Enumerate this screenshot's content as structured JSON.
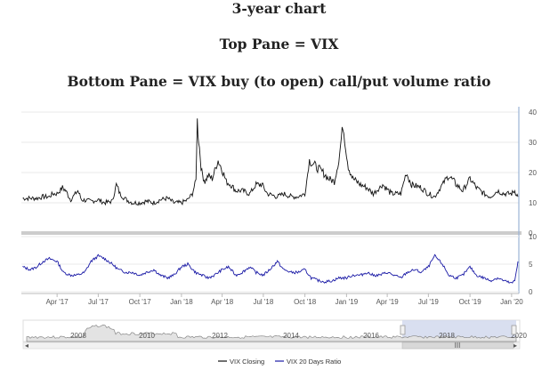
{
  "header": {
    "line1": "3-year chart",
    "line2": "Top Pane = VIX",
    "line3": "Bottom Pane = VIX buy (to open) call/put volume ratio"
  },
  "colors": {
    "vix": "#111111",
    "ratio": "#1a1aa6",
    "navigator_fill": "#cfd7ec",
    "navigator_line": "#888888"
  },
  "chart_data": {
    "type": "line",
    "x_tick_labels": [
      "Apr '17",
      "Jul '17",
      "Oct '17",
      "Jan '18",
      "Apr '18",
      "Jul '18",
      "Oct '18",
      "Jan '19",
      "Apr '19",
      "Jul '19",
      "Oct '19",
      "Jan '20"
    ],
    "top_pane": {
      "ylim": [
        0,
        40
      ],
      "y_tick_labels": [
        "10",
        "20",
        "30",
        "40"
      ]
    },
    "bottom_pane": {
      "ylim": [
        0,
        10
      ],
      "y_tick_labels": [
        "0",
        "5",
        "10"
      ]
    },
    "navigator_labels": [
      "2008",
      "2010",
      "2012",
      "2014",
      "2016",
      "2018",
      "2020"
    ],
    "series": [
      {
        "name": "VIX Closing",
        "x": [
          "2017-01-15",
          "2017-02-15",
          "2017-03-01",
          "2017-03-15",
          "2017-03-22",
          "2017-04-01",
          "2017-04-13",
          "2017-04-20",
          "2017-05-01",
          "2017-05-17",
          "2017-05-25",
          "2017-06-15",
          "2017-07-01",
          "2017-07-15",
          "2017-08-01",
          "2017-08-10",
          "2017-08-18",
          "2017-09-01",
          "2017-09-15",
          "2017-10-01",
          "2017-10-15",
          "2017-11-01",
          "2017-11-15",
          "2017-12-01",
          "2017-12-15",
          "2018-01-01",
          "2018-01-15",
          "2018-01-25",
          "2018-02-02",
          "2018-02-05",
          "2018-02-08",
          "2018-02-15",
          "2018-02-22",
          "2018-03-01",
          "2018-03-10",
          "2018-03-23",
          "2018-04-01",
          "2018-04-10",
          "2018-04-20",
          "2018-05-01",
          "2018-05-15",
          "2018-06-01",
          "2018-06-15",
          "2018-06-28",
          "2018-07-10",
          "2018-08-01",
          "2018-08-15",
          "2018-09-01",
          "2018-09-15",
          "2018-10-01",
          "2018-10-11",
          "2018-10-25",
          "2018-11-10",
          "2018-11-22",
          "2018-12-05",
          "2018-12-15",
          "2018-12-24",
          "2019-01-05",
          "2019-01-15",
          "2019-02-01",
          "2019-02-15",
          "2019-03-01",
          "2019-03-22",
          "2019-04-10",
          "2019-05-01",
          "2019-05-13",
          "2019-05-25",
          "2019-06-15",
          "2019-07-01",
          "2019-07-15",
          "2019-08-05",
          "2019-08-15",
          "2019-09-01",
          "2019-09-15",
          "2019-10-01",
          "2019-10-15",
          "2019-11-01",
          "2019-11-15",
          "2019-12-01",
          "2019-12-15",
          "2020-01-01",
          "2020-01-08",
          "2020-01-15"
        ],
        "values": [
          11.5,
          11.5,
          12,
          12,
          13,
          13,
          15,
          14,
          11,
          14,
          11,
          10.5,
          11,
          10,
          10.5,
          16,
          13,
          11,
          10,
          10,
          10.5,
          10,
          11,
          11.5,
          10,
          10,
          11,
          13,
          17.3,
          37,
          31,
          20,
          17,
          19,
          18,
          24,
          21,
          17,
          16,
          14,
          14,
          13,
          16,
          16,
          13,
          12,
          13,
          12,
          12,
          13,
          24,
          22,
          20,
          18,
          17,
          24,
          36,
          22,
          18,
          16,
          15,
          13,
          16,
          13,
          13,
          20,
          16,
          15,
          13,
          12,
          17,
          19,
          16,
          14,
          18,
          15,
          13,
          12,
          14,
          13,
          13,
          14,
          12
        ]
      },
      {
        "name": "VIX 20 Days Ratio",
        "x": [
          "2017-01-15",
          "2017-02-01",
          "2017-02-15",
          "2017-03-01",
          "2017-03-15",
          "2017-04-01",
          "2017-04-15",
          "2017-05-01",
          "2017-05-15",
          "2017-06-01",
          "2017-06-15",
          "2017-07-01",
          "2017-07-15",
          "2017-08-01",
          "2017-08-15",
          "2017-09-01",
          "2017-09-15",
          "2017-10-01",
          "2017-10-15",
          "2017-11-01",
          "2017-11-15",
          "2017-12-01",
          "2017-12-15",
          "2018-01-01",
          "2018-01-15",
          "2018-02-01",
          "2018-02-15",
          "2018-03-01",
          "2018-03-15",
          "2018-04-01",
          "2018-04-15",
          "2018-05-01",
          "2018-05-15",
          "2018-06-01",
          "2018-06-15",
          "2018-07-01",
          "2018-07-15",
          "2018-08-01",
          "2018-08-15",
          "2018-09-01",
          "2018-09-15",
          "2018-10-01",
          "2018-10-15",
          "2018-11-01",
          "2018-11-15",
          "2018-12-01",
          "2018-12-15",
          "2019-01-01",
          "2019-01-15",
          "2019-02-01",
          "2019-02-15",
          "2019-03-01",
          "2019-03-15",
          "2019-04-01",
          "2019-04-15",
          "2019-05-01",
          "2019-05-15",
          "2019-06-01",
          "2019-06-15",
          "2019-07-01",
          "2019-07-15",
          "2019-08-01",
          "2019-08-15",
          "2019-09-01",
          "2019-09-15",
          "2019-10-01",
          "2019-10-15",
          "2019-11-01",
          "2019-11-15",
          "2019-12-01",
          "2019-12-15",
          "2020-01-01",
          "2020-01-08",
          "2020-01-15"
        ],
        "values": [
          4.5,
          4,
          4.5,
          5.5,
          6,
          5.5,
          3.5,
          3,
          3,
          3.5,
          5.5,
          6.5,
          6,
          5,
          4,
          3.5,
          3.5,
          3,
          3.5,
          4,
          3,
          2.5,
          3,
          4.5,
          5,
          3.5,
          3,
          2.5,
          3,
          4,
          4.5,
          3,
          3.5,
          4.5,
          3.5,
          3,
          4,
          5.5,
          4,
          3.5,
          3.5,
          4,
          2.5,
          2,
          1.8,
          2,
          2.5,
          2.5,
          3,
          3,
          3.5,
          3,
          3,
          3.5,
          3,
          2.5,
          3.5,
          4,
          3.5,
          4.5,
          6.5,
          5,
          3,
          2.5,
          3,
          4.5,
          3,
          2.5,
          2,
          2.5,
          2,
          1.5,
          2,
          5.5
        ]
      }
    ]
  },
  "legend": {
    "items": [
      {
        "label": "VIX Closing"
      },
      {
        "label": "VIX 20 Days Ratio"
      }
    ]
  },
  "navigator": {
    "scroll_label": "III"
  }
}
